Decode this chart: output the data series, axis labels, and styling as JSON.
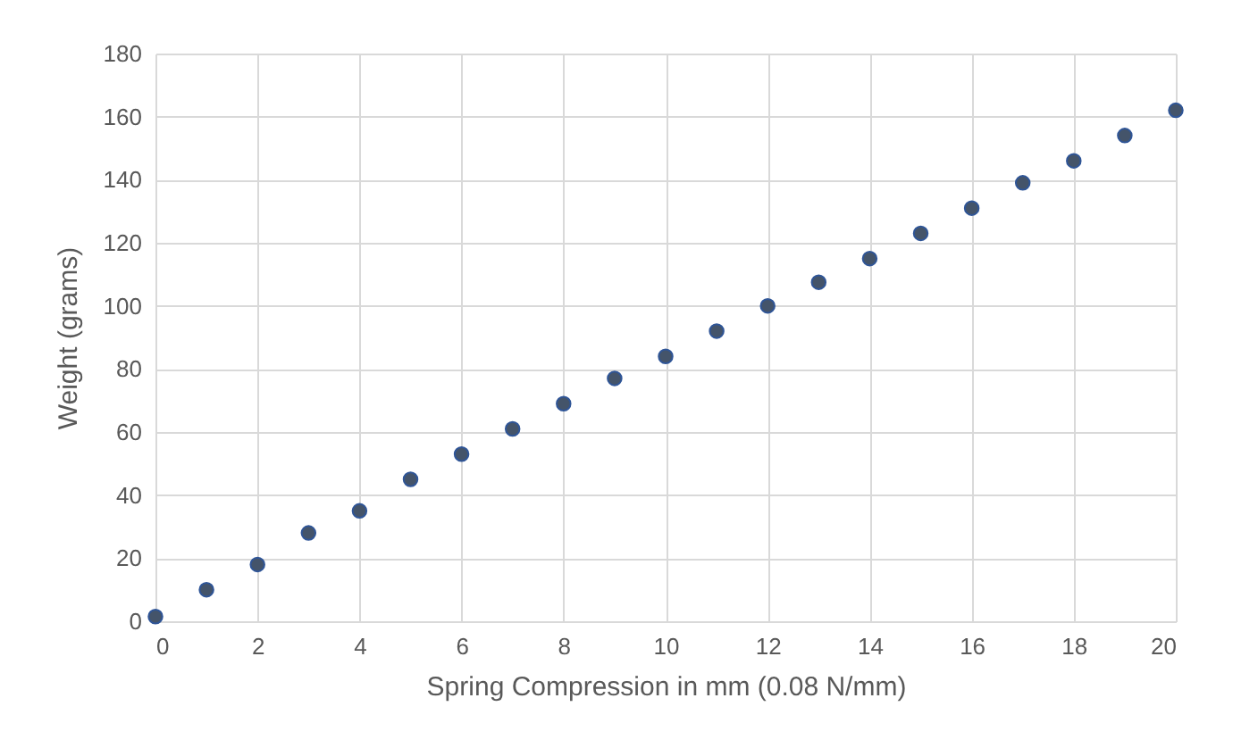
{
  "chart_data": {
    "type": "scatter",
    "xlabel": "Spring Compression in mm (0.08 N/mm)",
    "ylabel": "Weight (grams)",
    "x": [
      0,
      1,
      2,
      3,
      4,
      5,
      6,
      7,
      8,
      9,
      10,
      11,
      12,
      13,
      14,
      15,
      16,
      17,
      18,
      19,
      20
    ],
    "series": [
      {
        "color": "#44546a",
        "values": [
          1.5,
          10,
          18,
          28,
          35,
          45,
          53,
          61,
          69,
          77,
          84,
          92,
          100,
          107.5,
          115,
          123,
          131,
          139,
          146,
          154,
          162
        ]
      }
    ],
    "xlim": [
      0,
      20
    ],
    "xticks": [
      0,
      2,
      4,
      6,
      8,
      10,
      12,
      14,
      16,
      18,
      20
    ],
    "ylim": [
      0,
      180
    ],
    "yticks": [
      0,
      20,
      40,
      60,
      80,
      100,
      120,
      140,
      160,
      180
    ],
    "grid": true,
    "marker": "circle"
  }
}
